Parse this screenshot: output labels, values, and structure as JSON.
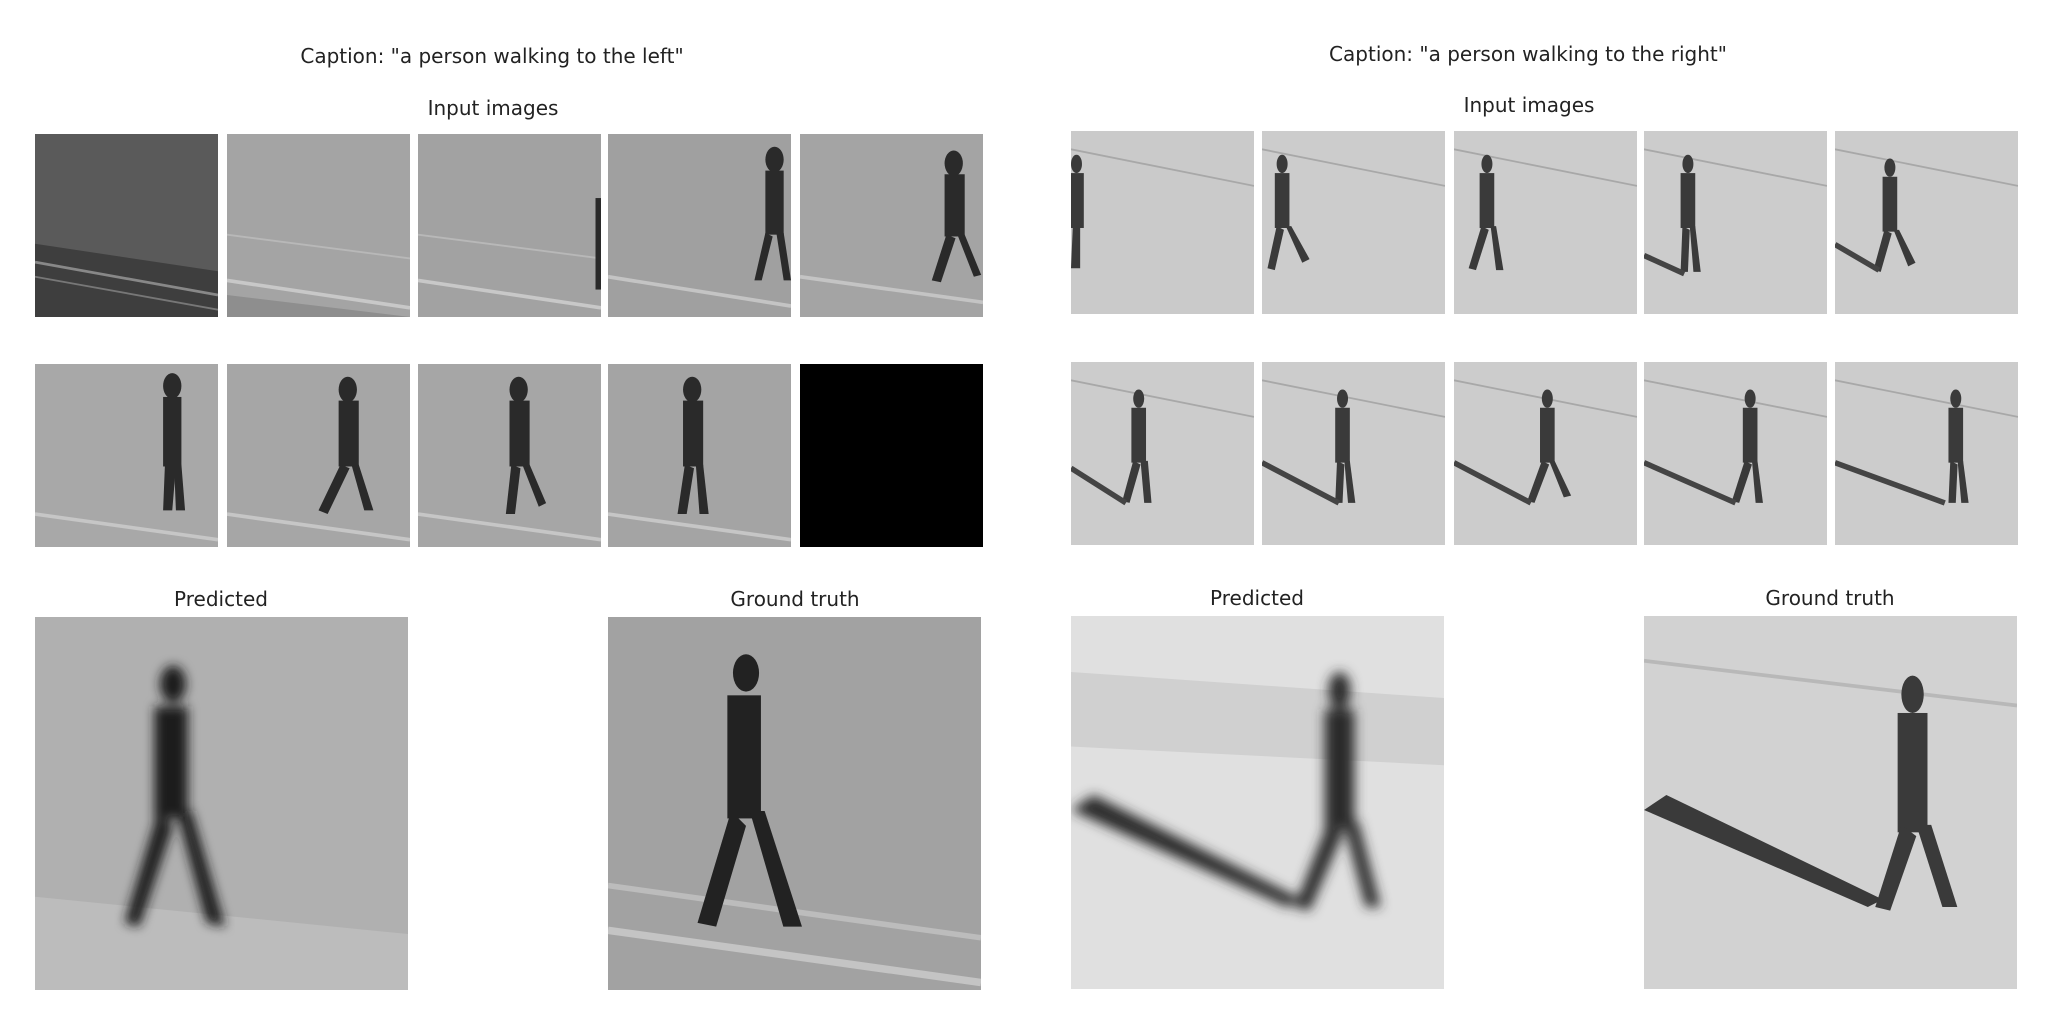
{
  "left": {
    "caption": "Caption: \"a person walking to the left\"",
    "input_label": "Input images",
    "predicted_label": "Predicted",
    "ground_truth_label": "Ground truth"
  },
  "right": {
    "caption": "Caption: \"a person walking to the right\"",
    "input_label": "Input images",
    "predicted_label": "Predicted",
    "ground_truth_label": "Ground truth"
  }
}
